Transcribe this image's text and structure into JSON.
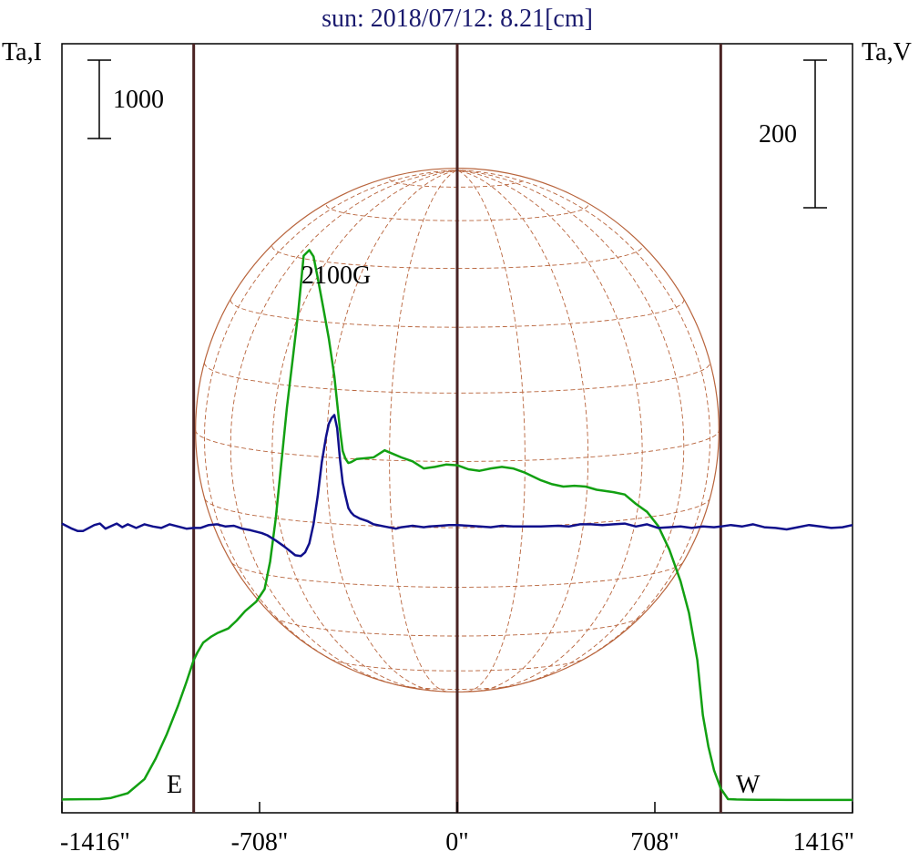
{
  "chart_data": {
    "type": "line",
    "title": "sun: 2018/07/12: 8.21[cm]",
    "left_axis_label": "Ta,I",
    "right_axis_label": "Ta,V",
    "x_ticks": [
      "-1416\"",
      "-708\"",
      "0\"",
      "708\"",
      "1416\""
    ],
    "x_tick_values": [
      -1416,
      -708,
      0,
      708,
      1416
    ],
    "xlim": [
      -1416,
      1416
    ],
    "scale_bar_left": {
      "label": "1000",
      "value": 1000
    },
    "scale_bar_right": {
      "label": "200",
      "value": 200
    },
    "limb_markers": [
      {
        "label": "E",
        "x": -944
      },
      {
        "label": "W",
        "x": 944
      }
    ],
    "center_marker_x": 0,
    "annotation": {
      "text": "2100G",
      "x": -425
    },
    "solar_disk_radius_arcsec": 944,
    "grid": true,
    "colors": {
      "stokes_i": "#12a012",
      "stokes_v": "#10108c",
      "limb_lines": "#4a2323",
      "disk": "#b8643c",
      "title": "#1a1a6e"
    },
    "series": [
      {
        "x": [
          -1416,
          -1350,
          -1280,
          -1240,
          -1180,
          -1120,
          -1080,
          -1040,
          -1000,
          -970,
          -944,
          -930,
          -910,
          -880,
          -860,
          -820,
          -790,
          -760,
          -720,
          -690,
          -670,
          -650,
          -630,
          -610,
          -590,
          -570,
          -550,
          -530,
          -515,
          -500,
          -480,
          -460,
          -440,
          -420,
          -410,
          -400,
          -390,
          -380,
          -360,
          -330,
          -300,
          -260,
          -240,
          -200,
          -160,
          -120,
          -80,
          -40,
          0,
          40,
          80,
          120,
          160,
          200,
          240,
          300,
          340,
          380,
          420,
          460,
          500,
          560,
          600,
          640,
          680,
          720,
          760,
          800,
          830,
          860,
          880,
          900,
          920,
          944,
          970,
          1000,
          1040,
          1080,
          1130,
          1180,
          1250,
          1300,
          1416
        ],
        "y": [
          30,
          33,
          35,
          50,
          110,
          290,
          550,
          860,
          1220,
          1520,
          1800,
          1900,
          2020,
          2100,
          2140,
          2200,
          2300,
          2420,
          2540,
          2700,
          3050,
          3600,
          4300,
          5000,
          5600,
          6200,
          6930,
          7000,
          6920,
          6650,
          6270,
          5880,
          5400,
          4720,
          4450,
          4350,
          4300,
          4310,
          4350,
          4360,
          4370,
          4460,
          4430,
          4370,
          4320,
          4230,
          4250,
          4280,
          4270,
          4220,
          4200,
          4230,
          4250,
          4230,
          4180,
          4080,
          4030,
          4000,
          4010,
          4000,
          3960,
          3930,
          3900,
          3780,
          3680,
          3500,
          3200,
          2800,
          2400,
          1800,
          1100,
          700,
          400,
          170,
          35,
          30,
          28,
          26,
          25,
          24,
          24,
          24,
          24
        ],
        "name": ""
      },
      {
        "x": [
          -1416,
          -1380,
          -1360,
          -1340,
          -1300,
          -1280,
          -1260,
          -1220,
          -1200,
          -1180,
          -1150,
          -1120,
          -1090,
          -1060,
          -1030,
          -1000,
          -970,
          -944,
          -920,
          -890,
          -860,
          -830,
          -800,
          -770,
          -740,
          -700,
          -680,
          -650,
          -620,
          -600,
          -580,
          -560,
          -545,
          -530,
          -515,
          -500,
          -485,
          -470,
          -460,
          -450,
          -440,
          -430,
          -420,
          -410,
          -400,
          -390,
          -380,
          -370,
          -350,
          -320,
          -300,
          -260,
          -220,
          -200,
          -160,
          -120,
          -100,
          -60,
          -30,
          0,
          40,
          80,
          120,
          160,
          200,
          260,
          300,
          360,
          400,
          440,
          480,
          520,
          560,
          600,
          640,
          680,
          720,
          760,
          800,
          840,
          880,
          920,
          944,
          980,
          1020,
          1060,
          1100,
          1140,
          1180,
          1220,
          1260,
          1300,
          1340,
          1380,
          1416
        ],
        "y": [
          3,
          -4,
          -7,
          -7,
          1,
          3,
          -4,
          3,
          -2,
          2,
          -3,
          2,
          -1,
          -3,
          2,
          -1,
          -4,
          -3,
          -3,
          1,
          2,
          -1,
          0,
          -4,
          -6,
          -10,
          -13,
          -20,
          -28,
          -34,
          -40,
          -41,
          -36,
          -24,
          2,
          40,
          86,
          120,
          138,
          146,
          150,
          132,
          90,
          58,
          40,
          24,
          18,
          14,
          10,
          6,
          2,
          -1,
          -4,
          -2,
          0,
          -2,
          -1,
          0,
          1,
          1,
          0,
          -1,
          -2,
          0,
          -1,
          -1,
          -1,
          0,
          -1,
          2,
          2,
          1,
          2,
          3,
          -1,
          2,
          -3,
          -2,
          -1,
          -3,
          -1,
          -2,
          -1,
          1,
          -1,
          2,
          -2,
          -3,
          -5,
          -2,
          1,
          -1,
          -3,
          -2,
          1
        ],
        "name": ""
      }
    ]
  }
}
